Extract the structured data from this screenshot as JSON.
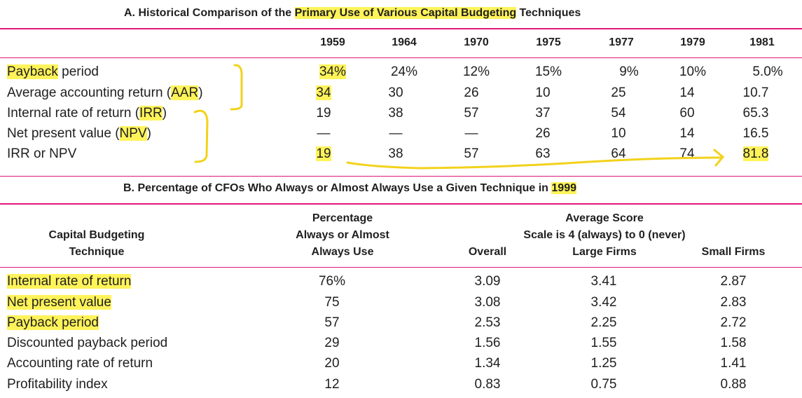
{
  "section_a": {
    "title_pre": "A. Historical Comparison of the ",
    "title_hl": "Primary Use of Various Capital Budgeting",
    "title_post": " Techniques",
    "years": [
      "1959",
      "1964",
      "1970",
      "1975",
      "1977",
      "1979",
      "1981"
    ],
    "rows": [
      {
        "pre": "",
        "hl": "Payback",
        "post": " period",
        "values": [
          "34%",
          "24%",
          "12%",
          "15%",
          "9%",
          "10%",
          "5.0%"
        ]
      },
      {
        "pre": "Average accounting return (",
        "hl": "AAR",
        "post": ")",
        "values": [
          "34",
          "30",
          "26",
          "10",
          "25",
          "14",
          "10.7"
        ]
      },
      {
        "pre": "Internal rate of return (",
        "hl": "IRR",
        "post": ")",
        "values": [
          "19",
          "38",
          "57",
          "37",
          "54",
          "60",
          "65.3"
        ]
      },
      {
        "pre": "Net present value (",
        "hl": "NPV",
        "post": ")",
        "values": [
          "—",
          "—",
          "—",
          "26",
          "10",
          "14",
          "16.5"
        ]
      },
      {
        "pre": "IRR or NPV",
        "hl": "",
        "post": "",
        "values": [
          "19",
          "38",
          "57",
          "63",
          "64",
          "74",
          "81.8"
        ]
      }
    ]
  },
  "section_b": {
    "title_pre": "B. Percentage of CFOs Who Always or Almost Always Use a Given Technique in ",
    "title_hl": "1999",
    "col_technique": [
      "Capital Budgeting",
      "Technique"
    ],
    "col_percentage": [
      "Percentage",
      "Always or Almost",
      "Always Use"
    ],
    "avg_score": [
      "Average Score",
      "Scale is 4 (always) to 0 (never)"
    ],
    "col_overall": "Overall",
    "col_large": "Large Firms",
    "col_small": "Small Firms",
    "rows": [
      {
        "label": "Internal rate of return",
        "values": [
          "76%",
          "3.09",
          "3.41",
          "2.87"
        ]
      },
      {
        "label": "Net present value",
        "values": [
          "75",
          "3.08",
          "3.42",
          "2.83"
        ]
      },
      {
        "label": "Payback period",
        "values": [
          "57",
          "2.53",
          "2.25",
          "2.72"
        ]
      },
      {
        "label": "Discounted payback period",
        "values": [
          "29",
          "1.56",
          "1.55",
          "1.58"
        ]
      },
      {
        "label": "Accounting rate of return",
        "values": [
          "20",
          "1.34",
          "1.25",
          "1.41"
        ]
      },
      {
        "label": "Profitability index",
        "values": [
          "12",
          "0.83",
          "0.75",
          "0.88"
        ]
      }
    ]
  },
  "colors": {
    "rule": "#e0187a",
    "highlight": "#fff35a",
    "annotation": "#f2d21b"
  }
}
